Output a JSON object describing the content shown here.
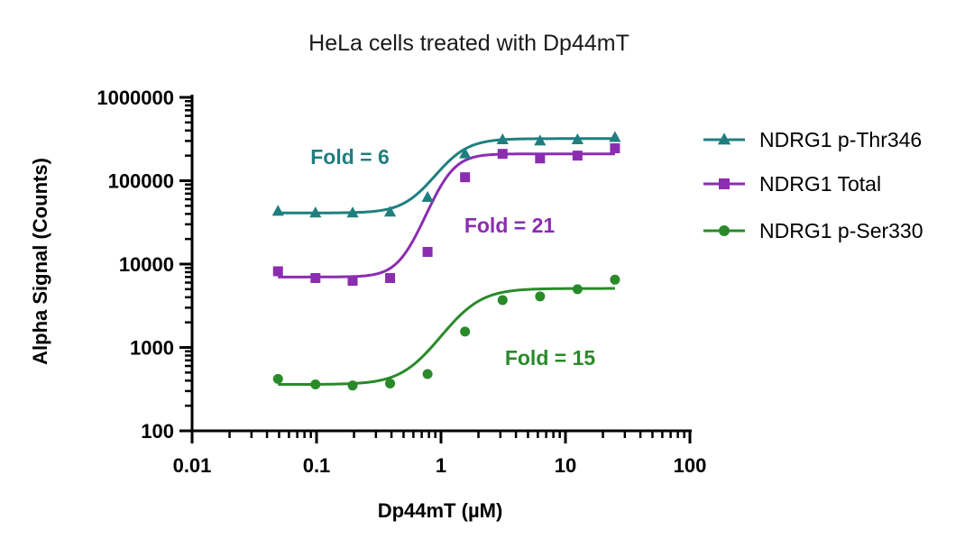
{
  "chart_data": {
    "type": "scatter",
    "title": "HeLa cells treated with Dp44mT",
    "xlabel": "Dp44mT (µM)",
    "ylabel": "Alpha Signal (Counts)",
    "x_scale": "log",
    "y_scale": "log",
    "xlim": [
      0.01,
      100
    ],
    "ylim": [
      100,
      1000000
    ],
    "x_ticks": [
      {
        "value": 0.01,
        "label": "0.01"
      },
      {
        "value": 0.1,
        "label": "0.1"
      },
      {
        "value": 1,
        "label": "1"
      },
      {
        "value": 10,
        "label": "10"
      },
      {
        "value": 100,
        "label": "100"
      }
    ],
    "y_ticks": [
      {
        "value": 100,
        "label": "100"
      },
      {
        "value": 1000,
        "label": "1000"
      },
      {
        "value": 10000,
        "label": "10000"
      },
      {
        "value": 100000,
        "label": "100000"
      },
      {
        "value": 1000000,
        "label": "1000000"
      }
    ],
    "grid": false,
    "legend_position": "right",
    "series": [
      {
        "name": "NDRG1 p-Thr346",
        "color": "#1f7f7f",
        "marker": "triangle",
        "x": [
          0.049,
          0.098,
          0.195,
          0.39,
          0.78,
          1.56,
          3.125,
          6.25,
          12.5,
          25
        ],
        "y": [
          43000,
          41000,
          41000,
          42000,
          63000,
          210000,
          310000,
          300000,
          310000,
          330000
        ],
        "fit": {
          "bottom": 41000,
          "top": 320000,
          "ec50": 1.2,
          "hill": 3.5
        }
      },
      {
        "name": "NDRG1 Total",
        "color": "#8a2db0",
        "marker": "square",
        "x": [
          0.049,
          0.098,
          0.195,
          0.39,
          0.78,
          1.56,
          3.125,
          6.25,
          12.5,
          25
        ],
        "y": [
          8200,
          6800,
          6300,
          6800,
          14000,
          110000,
          210000,
          185000,
          200000,
          245000
        ],
        "fit": {
          "bottom": 7000,
          "top": 210000,
          "ec50": 1.1,
          "hill": 4.5
        }
      },
      {
        "name": "NDRG1 p-Ser330",
        "color": "#2a8a2a",
        "marker": "circle",
        "x": [
          0.049,
          0.098,
          0.195,
          0.39,
          0.78,
          1.56,
          3.125,
          6.25,
          12.5,
          25
        ],
        "y": [
          420,
          360,
          350,
          370,
          480,
          1550,
          3700,
          4100,
          5000,
          6500
        ],
        "fit": {
          "bottom": 360,
          "top": 5100,
          "ec50": 1.55,
          "hill": 3.0
        }
      }
    ],
    "annotations": [
      {
        "text": "Fold = 6",
        "color": "#1f7f7f",
        "series": 0
      },
      {
        "text": "Fold = 21",
        "color": "#8a2db0",
        "series": 1
      },
      {
        "text": "Fold = 15",
        "color": "#2a8a2a",
        "series": 2
      }
    ]
  }
}
